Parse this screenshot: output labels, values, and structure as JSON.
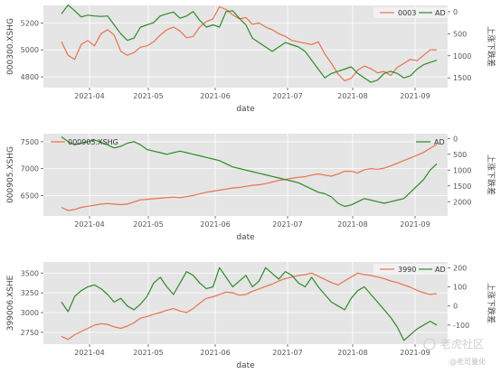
{
  "chart_data": [
    {
      "type": "line",
      "ylabel": "000300.XSHG",
      "y2label": "上涨下跌差",
      "xlabel": "date",
      "x_ticks": [
        "2021-04",
        "2021-05",
        "2021-06",
        "2021-07",
        "2021-08",
        "2021-09"
      ],
      "y_ticks": [
        4800,
        5000,
        5200
      ],
      "y2_ticks": [
        "0",
        "500",
        "1000",
        "1500"
      ],
      "ylim": [
        4720,
        5330
      ],
      "y2lim": [
        -1720,
        140
      ],
      "y2_inverted": true,
      "legend_position": "top-right",
      "series": [
        {
          "name": "000300.XSHG",
          "axis": "left",
          "color": "#e8724f",
          "values": [
            5060,
            4960,
            4930,
            5040,
            5070,
            5030,
            5120,
            5150,
            5110,
            4990,
            4960,
            4980,
            5020,
            5030,
            5060,
            5110,
            5150,
            5170,
            5140,
            5090,
            5100,
            5170,
            5210,
            5230,
            5320,
            5300,
            5260,
            5230,
            5240,
            5190,
            5200,
            5170,
            5150,
            5120,
            5100,
            5070,
            5060,
            5050,
            5040,
            5060,
            4970,
            4900,
            4820,
            4770,
            4790,
            4850,
            4880,
            4860,
            4830,
            4840,
            4810,
            4870,
            4900,
            4930,
            4920,
            4960,
            5000,
            5000
          ]
        },
        {
          "name": "AD",
          "axis": "right",
          "color": "#2e8b27",
          "values": [
            -50,
            150,
            20,
            -120,
            -80,
            -100,
            -110,
            -100,
            -300,
            -500,
            -650,
            -600,
            -350,
            -300,
            -250,
            -100,
            -50,
            -10,
            -150,
            -100,
            0,
            -200,
            -350,
            -300,
            -350,
            0,
            20,
            -150,
            -300,
            -600,
            -700,
            -800,
            -900,
            -800,
            -700,
            -750,
            -800,
            -900,
            -1100,
            -1300,
            -1500,
            -1400,
            -1350,
            -1300,
            -1250,
            -1400,
            -1500,
            -1600,
            -1550,
            -1400,
            -1350,
            -1400,
            -1500,
            -1450,
            -1300,
            -1200,
            -1150,
            -1100
          ]
        }
      ]
    },
    {
      "type": "line",
      "ylabel": "000905.XSHG",
      "y2label": "上涨下跌差",
      "xlabel": "date",
      "x_ticks": [
        "2021-04",
        "2021-05",
        "2021-06",
        "2021-07",
        "2021-08",
        "2021-09"
      ],
      "y_ticks": [
        6500,
        7000,
        7500
      ],
      "y2_ticks": [
        "0",
        "500",
        "1000",
        "1500",
        "2000"
      ],
      "ylim": [
        6120,
        7650
      ],
      "y2lim": [
        -2450,
        150
      ],
      "y2_inverted": true,
      "legend_position": "top-right",
      "series": [
        {
          "name": "000905.XSHG",
          "axis": "left",
          "color": "#e8724f",
          "values": [
            6280,
            6220,
            6240,
            6280,
            6300,
            6320,
            6340,
            6350,
            6340,
            6330,
            6340,
            6380,
            6420,
            6430,
            6440,
            6450,
            6460,
            6470,
            6460,
            6480,
            6500,
            6530,
            6560,
            6580,
            6600,
            6620,
            6640,
            6650,
            6670,
            6690,
            6700,
            6720,
            6750,
            6780,
            6800,
            6820,
            6840,
            6850,
            6880,
            6900,
            6880,
            6860,
            6900,
            6950,
            6950,
            6920,
            6980,
            7000,
            6990,
            7010,
            7050,
            7100,
            7150,
            7200,
            7250,
            7300,
            7380,
            7450
          ]
        },
        {
          "name": "AD",
          "axis": "right",
          "color": "#2e8b27",
          "values": [
            50,
            -100,
            -200,
            -150,
            -100,
            -50,
            -120,
            -200,
            -300,
            -250,
            -150,
            -100,
            -200,
            -350,
            -400,
            -450,
            -500,
            -450,
            -400,
            -450,
            -500,
            -550,
            -600,
            -650,
            -700,
            -800,
            -900,
            -950,
            -1000,
            -1050,
            -1100,
            -1150,
            -1200,
            -1250,
            -1300,
            -1350,
            -1400,
            -1500,
            -1600,
            -1700,
            -1750,
            -1850,
            -2050,
            -2150,
            -2100,
            -2000,
            -1900,
            -1950,
            -2000,
            -2050,
            -2000,
            -1950,
            -1900,
            -1700,
            -1500,
            -1300,
            -1000,
            -800
          ]
        }
      ]
    },
    {
      "type": "line",
      "ylabel": "399006.XSHE",
      "y2label": "上涨下跌差",
      "xlabel": "date",
      "x_ticks": [
        "2021-04",
        "2021-05",
        "2021-06",
        "2021-07",
        "2021-08",
        "2021-09"
      ],
      "y_ticks": [
        2750,
        3000,
        3250,
        3500
      ],
      "y2_ticks": [
        "200",
        "100",
        "0",
        "-100"
      ],
      "ylim": [
        2600,
        3640
      ],
      "y2lim": [
        -200,
        230
      ],
      "y2_inverted": false,
      "legend_position": "top-right",
      "series": [
        {
          "name": "399006.XSHE",
          "axis": "left",
          "color": "#e8724f",
          "values": [
            2700,
            2660,
            2720,
            2760,
            2800,
            2840,
            2860,
            2850,
            2820,
            2800,
            2830,
            2870,
            2930,
            2950,
            2980,
            3000,
            3030,
            3050,
            3020,
            3000,
            3050,
            3120,
            3180,
            3200,
            3230,
            3260,
            3250,
            3220,
            3230,
            3270,
            3300,
            3330,
            3360,
            3400,
            3430,
            3450,
            3470,
            3480,
            3500,
            3460,
            3420,
            3380,
            3350,
            3400,
            3450,
            3500,
            3480,
            3470,
            3450,
            3430,
            3400,
            3380,
            3350,
            3320,
            3280,
            3250,
            3230,
            3240
          ]
        },
        {
          "name": "AD",
          "axis": "right",
          "color": "#2e8b27",
          "values": [
            20,
            -30,
            50,
            80,
            100,
            110,
            90,
            60,
            20,
            40,
            0,
            -20,
            10,
            50,
            120,
            150,
            100,
            60,
            120,
            180,
            160,
            120,
            90,
            100,
            200,
            150,
            100,
            130,
            160,
            100,
            130,
            200,
            170,
            140,
            180,
            160,
            120,
            100,
            150,
            100,
            60,
            20,
            0,
            -20,
            40,
            80,
            100,
            60,
            20,
            -20,
            -60,
            -110,
            -180,
            -150,
            -120,
            -100,
            -80,
            -100
          ]
        }
      ]
    }
  ],
  "watermark": {
    "text": "老虎社区",
    "sub": "@老司量化"
  }
}
